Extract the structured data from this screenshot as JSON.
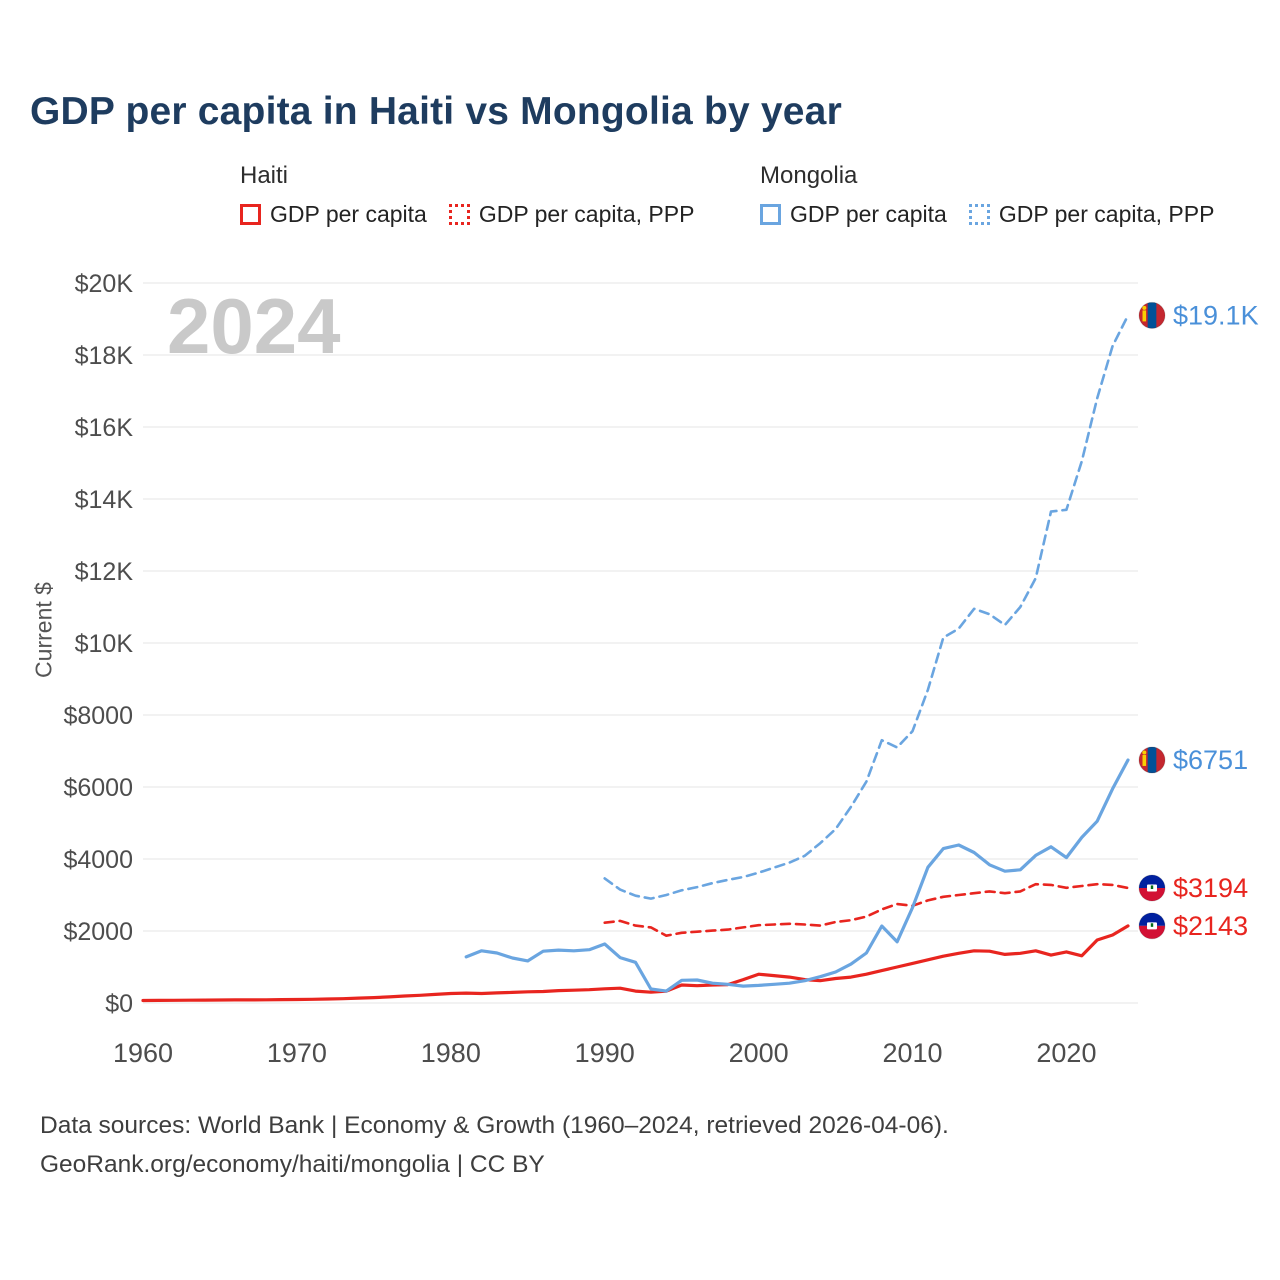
{
  "page": {
    "title": "GDP per capita in Haiti vs Mongolia by year",
    "watermark": "2024",
    "footer_line1": "Data sources: World Bank | Economy & Growth (1960–2024, retrieved 2026-04-06).",
    "footer_line2": "GeoRank.org/economy/haiti/mongolia | CC BY"
  },
  "legend": {
    "groups": [
      {
        "label": "Haiti",
        "items": [
          {
            "label": "GDP per capita",
            "style": "solid",
            "color": "#e8251f"
          },
          {
            "label": "GDP per capita, PPP",
            "style": "dotted",
            "color": "#e8251f"
          }
        ]
      },
      {
        "label": "Mongolia",
        "items": [
          {
            "label": "GDP per capita",
            "style": "solid",
            "color": "#6aa5e0"
          },
          {
            "label": "GDP per capita, PPP",
            "style": "dotted",
            "color": "#6aa5e0"
          }
        ]
      }
    ]
  },
  "chart_data": {
    "type": "line",
    "title": "GDP per capita in Haiti vs Mongolia by year",
    "xlabel": "",
    "ylabel": "Current $",
    "units": "current US$",
    "xlim": [
      1960,
      2024
    ],
    "ylim": [
      0,
      20000
    ],
    "grid": "horizontal",
    "x_ticks": [
      1960,
      1970,
      1980,
      1990,
      2000,
      2010,
      2020
    ],
    "y_ticks": [
      {
        "value": 0,
        "label": "$0"
      },
      {
        "value": 2000,
        "label": "$2000"
      },
      {
        "value": 4000,
        "label": "$4000"
      },
      {
        "value": 6000,
        "label": "$6000"
      },
      {
        "value": 8000,
        "label": "$8000"
      },
      {
        "value": 10000,
        "label": "$10K"
      },
      {
        "value": 12000,
        "label": "$12K"
      },
      {
        "value": 14000,
        "label": "$14K"
      },
      {
        "value": 16000,
        "label": "$16K"
      },
      {
        "value": 18000,
        "label": "$18K"
      },
      {
        "value": 20000,
        "label": "$20K"
      }
    ],
    "series": [
      {
        "id": "haiti-gdp",
        "name": "Haiti GDP per capita",
        "flag": "haiti",
        "color": "#e8251f",
        "label_color": "#e8251f",
        "dashed": false,
        "start_year": 1960,
        "end_label": "$2143",
        "values": [
          70,
          72,
          74,
          77,
          80,
          82,
          85,
          87,
          90,
          94,
          98,
          103,
          110,
          120,
          135,
          150,
          170,
          195,
          215,
          240,
          265,
          275,
          265,
          280,
          295,
          310,
          320,
          345,
          355,
          370,
          395,
          410,
          330,
          300,
          330,
          500,
          480,
          500,
          510,
          650,
          800,
          760,
          720,
          650,
          620,
          680,
          720,
          800,
          900,
          1000,
          1100,
          1200,
          1300,
          1380,
          1450,
          1440,
          1350,
          1380,
          1450,
          1330,
          1420,
          1310,
          1750,
          1890,
          2143
        ]
      },
      {
        "id": "haiti-ppp",
        "name": "Haiti GDP per capita, PPP",
        "flag": "haiti",
        "color": "#e8251f",
        "label_color": "#e8251f",
        "dashed": true,
        "start_year": 1990,
        "end_label": "$3194",
        "values": [
          2230,
          2280,
          2150,
          2100,
          1870,
          1950,
          1980,
          2010,
          2040,
          2100,
          2160,
          2180,
          2200,
          2180,
          2150,
          2250,
          2300,
          2400,
          2600,
          2750,
          2700,
          2850,
          2950,
          3000,
          3050,
          3100,
          3050,
          3100,
          3300,
          3280,
          3200,
          3250,
          3300,
          3280,
          3194
        ]
      },
      {
        "id": "mongolia-gdp",
        "name": "Mongolia GDP per capita",
        "flag": "mongolia",
        "color": "#6aa5e0",
        "label_color": "#4a90d9",
        "dashed": false,
        "start_year": 1981,
        "end_label": "$6751",
        "values": [
          1280,
          1450,
          1390,
          1250,
          1170,
          1440,
          1470,
          1450,
          1480,
          1640,
          1260,
          1130,
          390,
          330,
          630,
          640,
          550,
          520,
          470,
          490,
          520,
          550,
          620,
          730,
          860,
          1080,
          1390,
          2140,
          1700,
          2650,
          3770,
          4290,
          4390,
          4180,
          3840,
          3660,
          3700,
          4100,
          4340,
          4040,
          4600,
          5050,
          5950,
          6751
        ]
      },
      {
        "id": "mongolia-ppp",
        "name": "Mongolia GDP per capita, PPP",
        "flag": "mongolia",
        "color": "#6aa5e0",
        "label_color": "#4a90d9",
        "dashed": true,
        "start_year": 1990,
        "end_label": "$19.1K",
        "values": [
          3460,
          3150,
          2980,
          2900,
          3000,
          3130,
          3220,
          3330,
          3420,
          3500,
          3620,
          3760,
          3900,
          4090,
          4440,
          4830,
          5450,
          6150,
          7300,
          7100,
          7550,
          8700,
          10150,
          10400,
          10950,
          10800,
          10500,
          11000,
          11800,
          13650,
          13700,
          15050,
          16800,
          18250,
          19100
        ]
      }
    ]
  }
}
